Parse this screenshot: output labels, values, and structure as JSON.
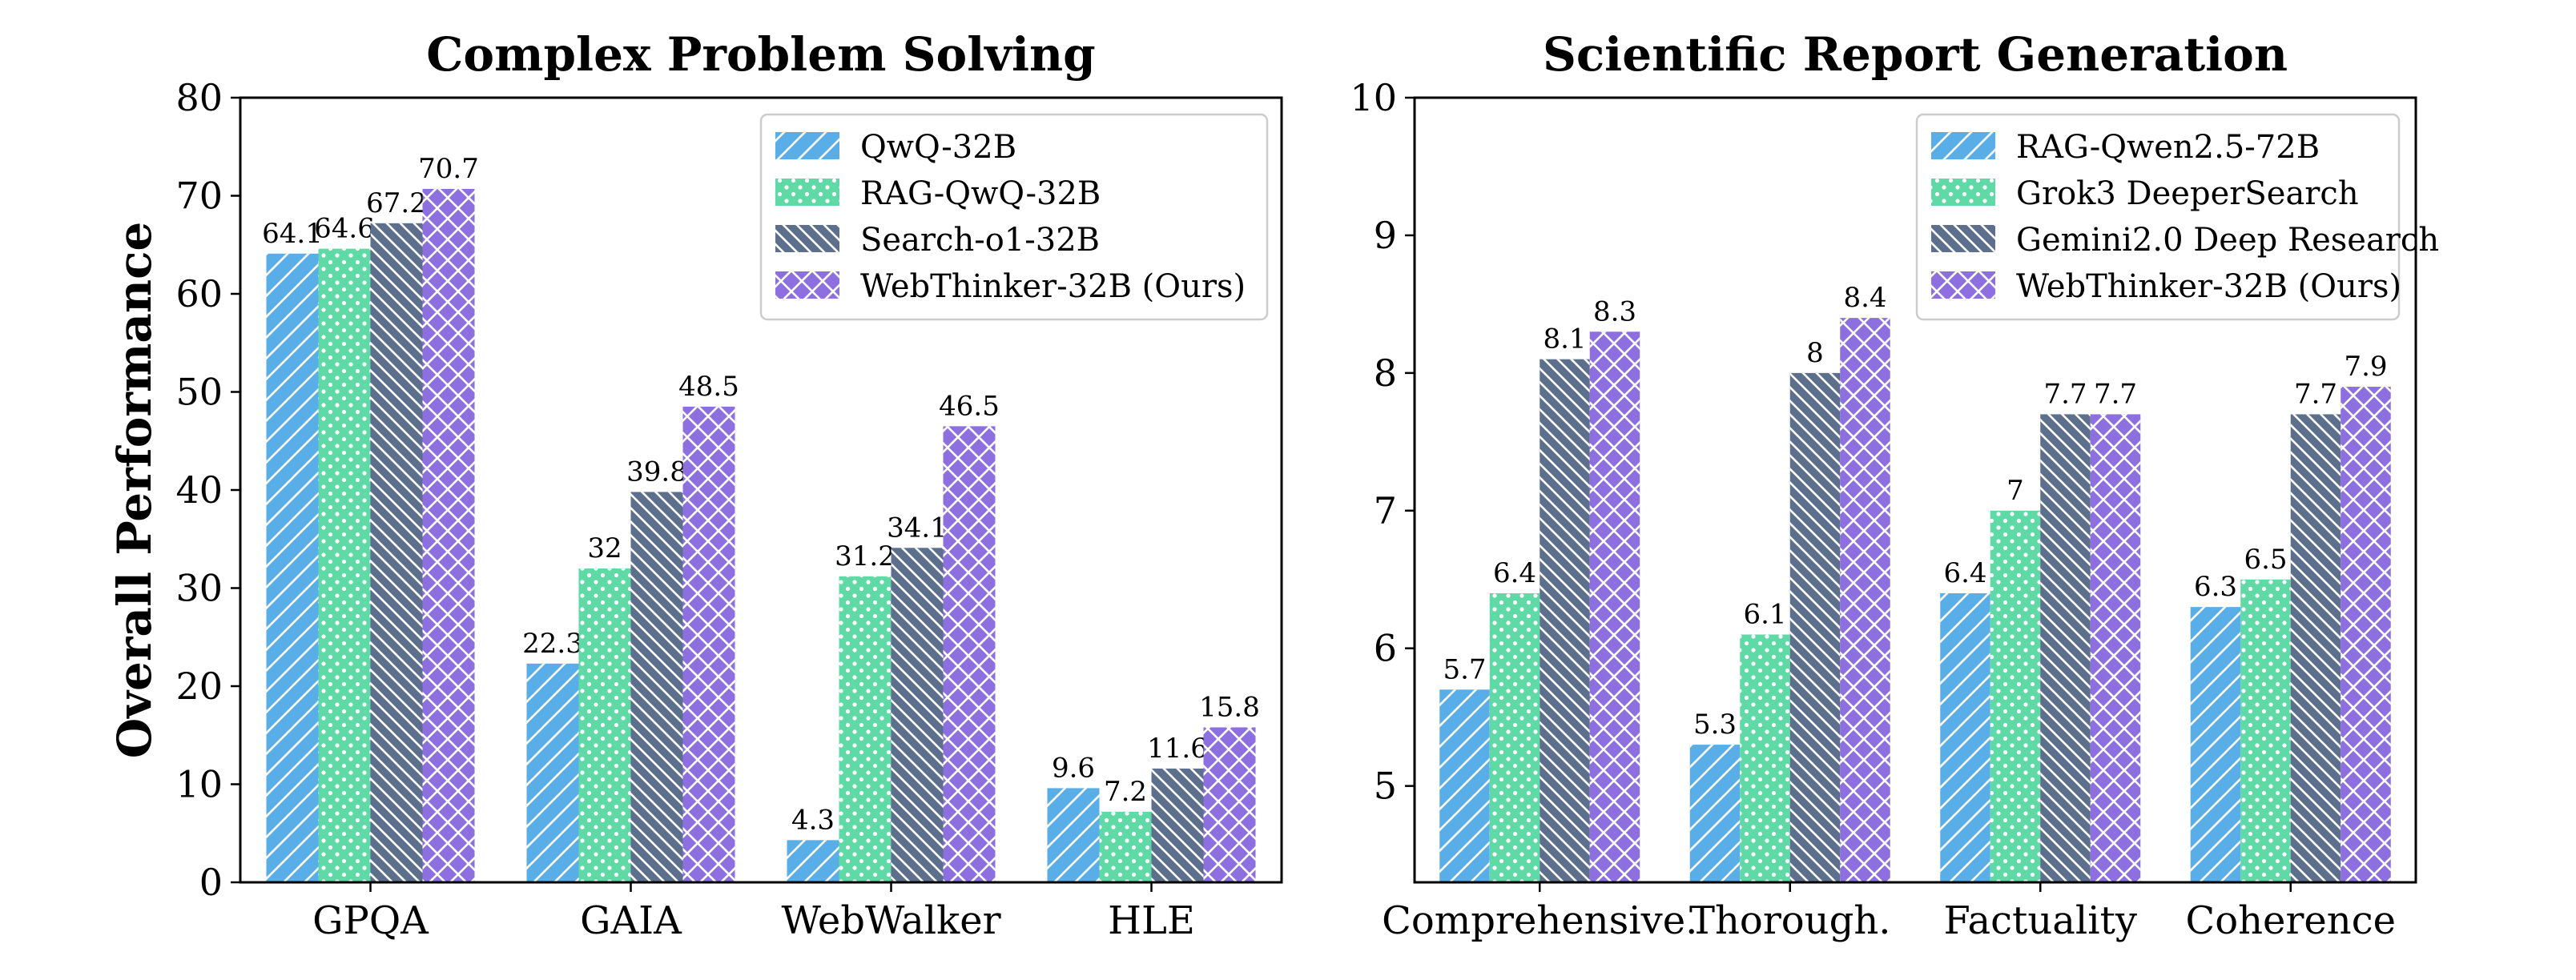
{
  "figure": {
    "shared_ylabel": "Overall Performance"
  },
  "colors": {
    "blue": "#5aaee8",
    "green": "#5fd9a6",
    "slate": "#5c6f8c",
    "purple": "#8d6fe0"
  },
  "chart_data": [
    {
      "type": "bar",
      "title": "Complex Problem Solving",
      "xlabel": "",
      "ylabel": "Overall Performance",
      "ylim": [
        0,
        80
      ],
      "yticks": [
        0,
        10,
        20,
        30,
        40,
        50,
        60,
        70,
        80
      ],
      "categories": [
        "GPQA",
        "GAIA",
        "WebWalker",
        "HLE"
      ],
      "legend_position": "top-right",
      "series": [
        {
          "name": "QwQ-32B",
          "values": [
            64.1,
            22.3,
            4.3,
            9.6
          ],
          "color": "#5aaee8",
          "pattern": "hatch-diagonal"
        },
        {
          "name": "RAG-QwQ-32B",
          "values": [
            64.6,
            32.0,
            31.2,
            7.2
          ],
          "color": "#5fd9a6",
          "pattern": "dots"
        },
        {
          "name": "Search-o1-32B",
          "values": [
            67.2,
            39.8,
            34.1,
            11.6
          ],
          "color": "#5c6f8c",
          "pattern": "hatch-backdiagonal"
        },
        {
          "name": "WebThinker-32B (Ours)",
          "values": [
            70.7,
            48.5,
            46.5,
            15.8
          ],
          "color": "#8d6fe0",
          "pattern": "crosshatch"
        }
      ]
    },
    {
      "type": "bar",
      "title": "Scientific Report Generation",
      "xlabel": "",
      "ylabel": "",
      "ylim": [
        4.3,
        10
      ],
      "yticks": [
        5,
        6,
        7,
        8,
        9,
        10
      ],
      "categories": [
        "Comprehensive.",
        "Thorough.",
        "Factuality",
        "Coherence"
      ],
      "legend_position": "top-right",
      "series": [
        {
          "name": "RAG-Qwen2.5-72B",
          "values": [
            5.7,
            5.3,
            6.4,
            6.3
          ],
          "color": "#5aaee8",
          "pattern": "hatch-diagonal"
        },
        {
          "name": "Grok3 DeeperSearch",
          "values": [
            6.4,
            6.1,
            7.0,
            6.5
          ],
          "color": "#5fd9a6",
          "pattern": "dots"
        },
        {
          "name": "Gemini2.0 Deep Research",
          "values": [
            8.1,
            8.0,
            7.7,
            7.7
          ],
          "color": "#5c6f8c",
          "pattern": "hatch-backdiagonal"
        },
        {
          "name": "WebThinker-32B (Ours)",
          "values": [
            8.3,
            8.4,
            7.7,
            7.9
          ],
          "color": "#8d6fe0",
          "pattern": "crosshatch"
        }
      ]
    }
  ]
}
